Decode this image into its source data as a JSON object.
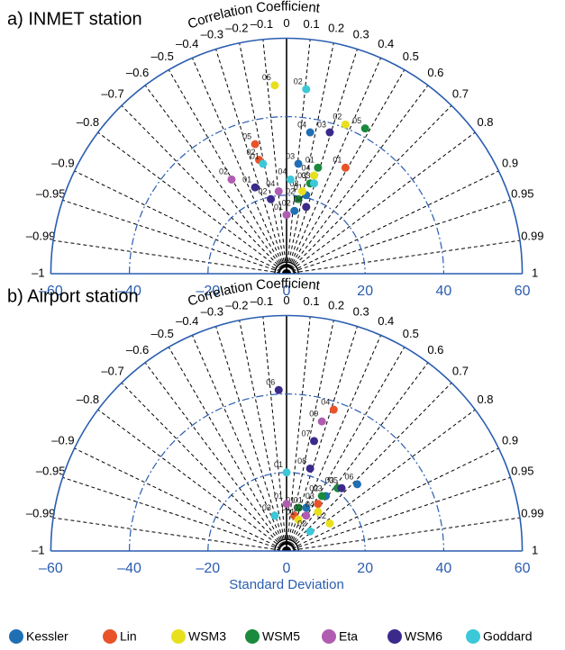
{
  "chart_data": [
    {
      "type": "taylor",
      "title": "a) INMET station",
      "r_label": "Correlation Coefficient",
      "xlim": [
        -60,
        60
      ],
      "xticks": [
        {
          "value": -60,
          "label": "–60"
        },
        {
          "value": -40,
          "label": "–40"
        },
        {
          "value": -20,
          "label": "–20"
        },
        0,
        20,
        40,
        60
      ],
      "corr_ticks": [
        {
          "value": -1,
          "label": "–1"
        },
        {
          "value": -0.99,
          "label": "–0.99"
        },
        {
          "value": -0.95,
          "label": "–0.95"
        },
        {
          "value": -0.9,
          "label": "–0.9"
        },
        {
          "value": -0.8,
          "label": "–0.8"
        },
        {
          "value": -0.7,
          "label": "–0.7"
        },
        {
          "value": -0.6,
          "label": "–0.6"
        },
        {
          "value": -0.5,
          "label": "–0.5"
        },
        {
          "value": -0.4,
          "label": "–0.4"
        },
        {
          "value": -0.3,
          "label": "–0.3"
        },
        {
          "value": -0.2,
          "label": "–0.2"
        },
        {
          "value": -0.1,
          "label": "–0.1"
        },
        0,
        0.1,
        0.2,
        0.3,
        0.4,
        0.5,
        0.6,
        0.7,
        0.8,
        0.9,
        0.95,
        0.99,
        1
      ],
      "series": [
        {
          "name": "Kessler",
          "color": "#1f6fb4",
          "x": [
            6,
            3,
            5,
            2
          ],
          "y": [
            36,
            28,
            20,
            16
          ],
          "labels": [
            "04",
            "03",
            "01",
            "02"
          ]
        },
        {
          "name": "Lin",
          "color": "#e8532a",
          "x": [
            -8,
            -7,
            15,
            5
          ],
          "y": [
            33,
            29,
            27,
            17
          ],
          "labels": [
            "05",
            "02",
            "01",
            "03"
          ]
        },
        {
          "name": "WSM3",
          "color": "#e8e01c",
          "x": [
            -3,
            15,
            7,
            4
          ],
          "y": [
            48,
            38,
            25,
            21
          ],
          "labels": [
            "05",
            "02",
            "04",
            "03"
          ]
        },
        {
          "name": "WSM5",
          "color": "#1a8a3c",
          "x": [
            20,
            8,
            6,
            3
          ],
          "y": [
            37,
            27,
            23,
            19
          ],
          "labels": [
            "05",
            "01",
            "03",
            "02"
          ]
        },
        {
          "name": "Eta",
          "color": "#b05cb0",
          "x": [
            -14,
            0,
            -2
          ],
          "y": [
            24,
            15,
            21
          ],
          "labels": [
            "02",
            "01",
            "04"
          ]
        },
        {
          "name": "WSM6",
          "color": "#3b2a8c",
          "x": [
            11,
            -8,
            -4,
            5
          ],
          "y": [
            36,
            22,
            19,
            17
          ],
          "labels": [
            "03",
            "01",
            "02",
            "04"
          ]
        },
        {
          "name": "Goddard",
          "color": "#3cc8d8",
          "x": [
            5,
            -6,
            1,
            7
          ],
          "y": [
            47,
            28,
            24,
            23
          ],
          "labels": [
            "02",
            "01",
            "04",
            "03"
          ]
        }
      ]
    },
    {
      "type": "taylor",
      "title": "b) Airport station",
      "r_label": "Correlation Coefficient",
      "xlabel": "Standard Deviation",
      "xlim": [
        -60,
        60
      ],
      "xticks": [
        {
          "value": -60,
          "label": "–60"
        },
        {
          "value": -40,
          "label": "–40"
        },
        {
          "value": -20,
          "label": "–20"
        },
        0,
        20,
        40,
        60
      ],
      "corr_ticks": [
        {
          "value": -1,
          "label": "–1"
        },
        {
          "value": -0.99,
          "label": "–0.99"
        },
        {
          "value": -0.95,
          "label": "–0.95"
        },
        {
          "value": -0.9,
          "label": "–0.9"
        },
        {
          "value": -0.8,
          "label": "–0.8"
        },
        {
          "value": -0.7,
          "label": "–0.7"
        },
        {
          "value": -0.6,
          "label": "–0.6"
        },
        {
          "value": -0.5,
          "label": "–0.5"
        },
        {
          "value": -0.4,
          "label": "–0.4"
        },
        {
          "value": -0.3,
          "label": "–0.3"
        },
        {
          "value": -0.2,
          "label": "–0.2"
        },
        {
          "value": -0.1,
          "label": "–0.1"
        },
        0,
        0.1,
        0.2,
        0.3,
        0.4,
        0.5,
        0.6,
        0.7,
        0.8,
        0.9,
        0.95,
        0.99,
        1
      ],
      "series": [
        {
          "x": [
            18,
            10,
            5
          ],
          "y": [
            17,
            14,
            11
          ],
          "labels": [
            "06",
            "03",
            "01"
          ]
        },
        {
          "x": [
            12,
            8,
            2
          ],
          "y": [
            36,
            12,
            9
          ],
          "labels": [
            "04",
            "03",
            "01"
          ]
        },
        {
          "x": [
            11,
            8,
            3
          ],
          "y": [
            7,
            10,
            8
          ],
          "labels": [
            "02",
            "04",
            "01"
          ]
        },
        {
          "x": [
            13,
            9,
            3
          ],
          "y": [
            16,
            14,
            11
          ],
          "labels": [
            "03",
            "02",
            "01"
          ]
        },
        {
          "x": [
            9,
            0,
            5
          ],
          "y": [
            33,
            12,
            9
          ],
          "labels": [
            "09",
            "01",
            "02"
          ]
        },
        {
          "x": [
            -2,
            7,
            6,
            14
          ],
          "y": [
            41,
            28,
            21,
            16
          ],
          "labels": [
            "06",
            "07",
            "08",
            "05"
          ]
        },
        {
          "x": [
            0,
            6,
            -3
          ],
          "y": [
            20,
            5,
            9
          ],
          "labels": [
            "01",
            "02",
            "03"
          ]
        }
      ]
    }
  ]
}
